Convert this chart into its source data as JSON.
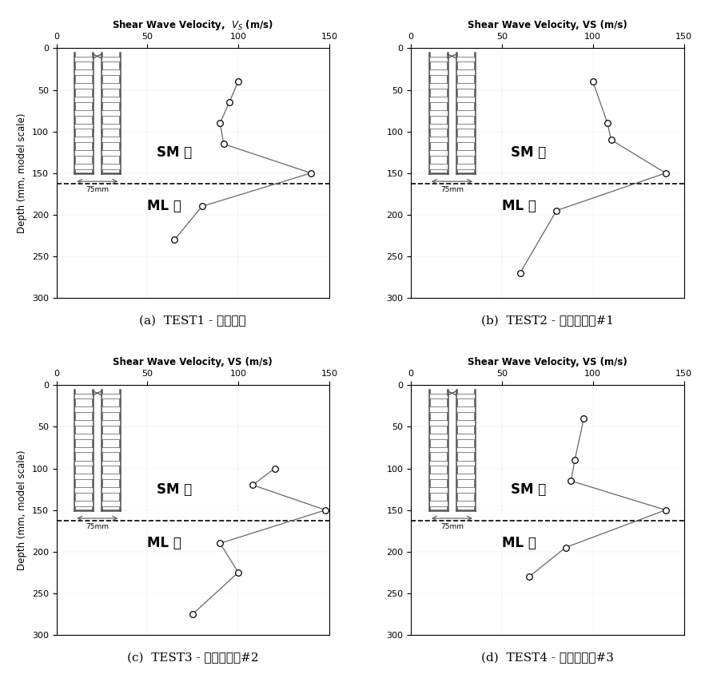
{
  "panels": [
    {
      "label": "(a)  TEST1 - 모노포드",
      "xlabel": "Shear Wave Velocity,  $V_S$ (m/s)",
      "depths": [
        40,
        65,
        90,
        115,
        150,
        190,
        230
      ],
      "vs": [
        100,
        95,
        90,
        92,
        140,
        80,
        65
      ]
    },
    {
      "label": "(b)  TEST2 - 트라이포드#1",
      "xlabel": "Shear Wave Velocity, VS (m/s)",
      "depths": [
        40,
        90,
        110,
        150,
        195,
        270
      ],
      "vs": [
        100,
        108,
        110,
        140,
        80,
        60
      ]
    },
    {
      "label": "(c)  TEST3 - 트라이포드#2",
      "xlabel": "Shear Wave Velocity, VS (m/s)",
      "depths": [
        100,
        120,
        150,
        190,
        225,
        275
      ],
      "vs": [
        120,
        108,
        148,
        90,
        100,
        75
      ]
    },
    {
      "label": "(d)  TEST4 - 트라이포드#3",
      "xlabel": "Shear Wave Velocity, VS (m/s)",
      "depths": [
        40,
        90,
        115,
        150,
        195,
        230
      ],
      "vs": [
        95,
        90,
        88,
        140,
        85,
        65
      ]
    }
  ],
  "xlim": [
    0,
    150
  ],
  "ylim": [
    300,
    0
  ],
  "xticks": [
    0,
    50,
    100,
    150
  ],
  "yticks": [
    0,
    50,
    100,
    150,
    200,
    250,
    300
  ],
  "ylabel": "Depth (mm, model scale)",
  "layer_boundary": 163,
  "sm_label": "SM 층",
  "ml_label": "ML 층",
  "pile_color": "#555555",
  "line_color": "#666666",
  "bg_color": "white",
  "axis_fontsize": 8.5,
  "tick_fontsize": 8,
  "label_fontsize": 11
}
